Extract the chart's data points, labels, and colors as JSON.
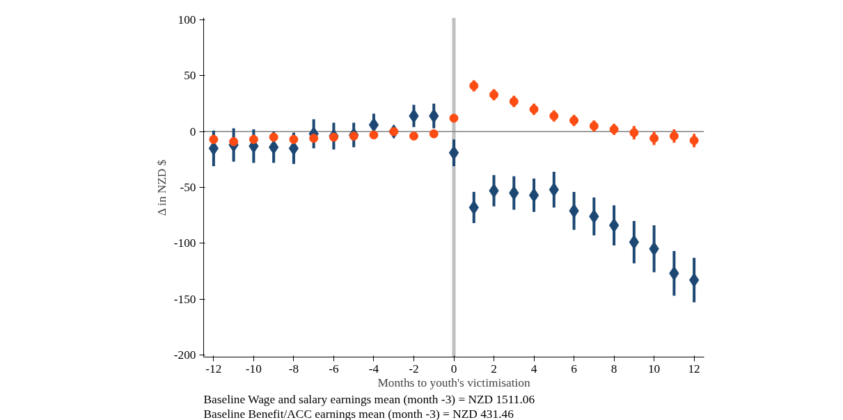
{
  "chart_data": {
    "type": "scatter",
    "xlabel": "Months to youth's victimisation",
    "ylabel": "Δ in NZD $",
    "x": [
      -12,
      -11,
      -10,
      -9,
      -8,
      -7,
      -6,
      -5,
      -4,
      -3,
      -2,
      -1,
      0,
      1,
      2,
      3,
      4,
      5,
      6,
      7,
      8,
      9,
      10,
      11,
      12
    ],
    "series": [
      {
        "color": "#1d4873",
        "marker": "diamond",
        "values": [
          -15,
          -12,
          -13,
          -14,
          -15,
          -2,
          -4,
          -3,
          6,
          0,
          14,
          14,
          -19,
          -68,
          -53,
          -55,
          -57,
          -52,
          -71,
          -76,
          -84,
          -99,
          -105,
          -127,
          -133
        ],
        "errors": [
          16,
          15,
          15,
          14,
          14,
          13,
          12,
          11,
          10,
          null,
          10,
          11,
          12,
          14,
          14,
          15,
          15,
          16,
          17,
          17,
          18,
          19,
          21,
          20,
          20
        ]
      },
      {
        "color": "#fc4c14",
        "marker": "circle",
        "values": [
          -7,
          -9,
          -7,
          -5,
          -7,
          -6,
          -5,
          -4,
          -3,
          0,
          -4,
          -2,
          12,
          41,
          33,
          27,
          20,
          14,
          10,
          5,
          2,
          -1,
          -6,
          -4,
          -8
        ],
        "errors": [
          4,
          4,
          4,
          4,
          4,
          4,
          3,
          3,
          3,
          null,
          3,
          3,
          3,
          5,
          5,
          5,
          5,
          5,
          5,
          5,
          5,
          6,
          6,
          6,
          6
        ]
      }
    ],
    "xlim": [
      -12.5,
      12.5
    ],
    "ylim": [
      -202,
      102
    ],
    "xticks": [
      -12,
      -10,
      -8,
      -6,
      -4,
      -2,
      0,
      2,
      4,
      6,
      8,
      10,
      12
    ],
    "yticks": [
      -200,
      -150,
      -100,
      -50,
      0,
      50,
      100
    ],
    "ref_lines": [
      {
        "axis": "x",
        "value": 0,
        "color": "#c0c0c0"
      },
      {
        "axis": "y",
        "value": 0,
        "color": "#808080"
      }
    ],
    "grid": false,
    "annotations": [
      "Baseline Wage and salary earnings mean (month -3) = NZD 1511.06",
      "Baseline Benefit/ACC earnings mean (month -3) =  NZD 431.46"
    ]
  }
}
